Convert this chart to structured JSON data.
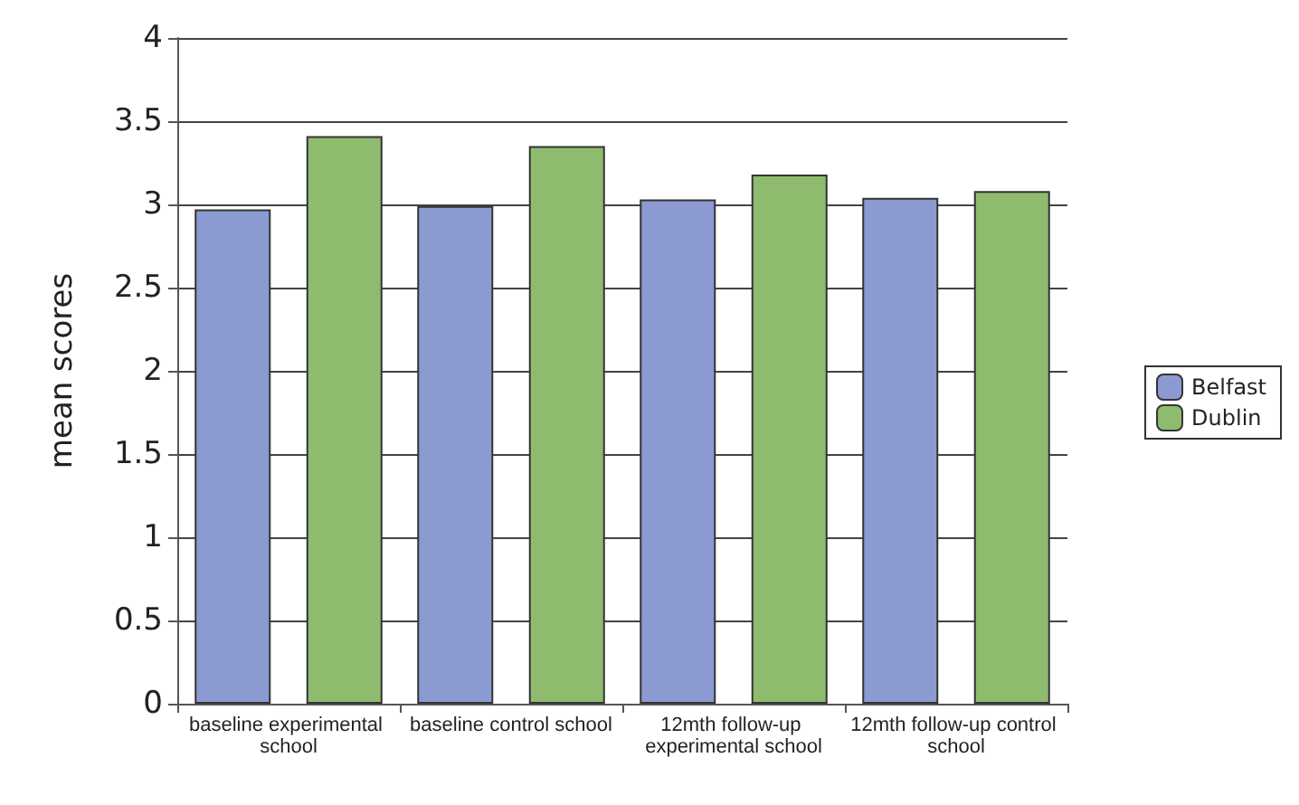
{
  "chart_data": {
    "type": "bar",
    "ylabel": "mean scores",
    "categories": [
      "baseline experimental school",
      "baseline control school",
      "12mth follow-up experimental school",
      "12mth follow-up control school"
    ],
    "series": [
      {
        "name": "Belfast",
        "color": "#8b9ad0",
        "values": [
          2.97,
          2.99,
          3.03,
          3.04
        ]
      },
      {
        "name": "Dublin",
        "color": "#8fbb6f",
        "values": [
          3.41,
          3.35,
          3.18,
          3.08
        ]
      }
    ],
    "ylim": [
      0,
      4
    ],
    "yticks": [
      0,
      0.5,
      1,
      1.5,
      2,
      2.5,
      3,
      3.5,
      4
    ],
    "grid": "y",
    "legend": "right"
  }
}
